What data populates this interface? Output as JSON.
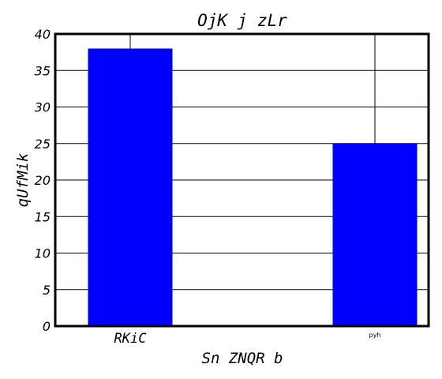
{
  "chart_data": {
    "type": "bar",
    "title": "OjK j zLr",
    "xlabel": "Sn ZNQR b",
    "ylabel": "qUfMik",
    "categories": [
      "RKiC",
      "pyh"
    ],
    "values": [
      38,
      25
    ],
    "ylim": [
      0,
      40
    ],
    "yticks": [
      0,
      5,
      10,
      15,
      20,
      25,
      30,
      35,
      40
    ],
    "grid": true,
    "bar_color": "#0000ff"
  }
}
